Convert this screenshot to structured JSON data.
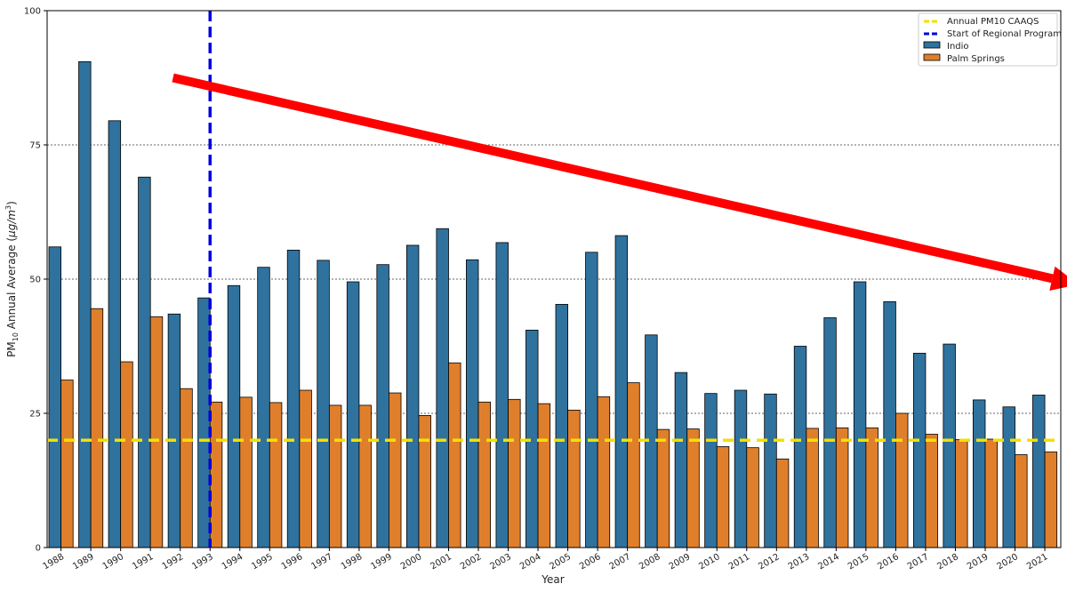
{
  "chart_data": {
    "type": "bar",
    "xlabel": "Year",
    "ylabel_main": "PM",
    "ylabel_sub": "10",
    "ylabel_rest": " Annual Average (",
    "ylabel_unit": "μg/m",
    "ylabel_sup": "3",
    "ylabel_close": ")",
    "ylim": [
      0,
      100
    ],
    "yticks": [
      "0",
      "25",
      "50",
      "75",
      "100"
    ],
    "grid": "horizontal dotted",
    "legend_position": "top-right",
    "categories": [
      "1988",
      "1989",
      "1990",
      "1991",
      "1992",
      "1993",
      "1994",
      "1995",
      "1996",
      "1997",
      "1998",
      "1999",
      "2000",
      "2001",
      "2002",
      "2003",
      "2004",
      "2005",
      "2006",
      "2007",
      "2008",
      "2009",
      "2010",
      "2011",
      "2012",
      "2013",
      "2014",
      "2015",
      "2016",
      "2017",
      "2018",
      "2019",
      "2020",
      "2021"
    ],
    "series": [
      {
        "name": "Indio",
        "color": "#30729e",
        "values": [
          56,
          90.5,
          79.5,
          69,
          43.5,
          46.5,
          48.8,
          52.2,
          55.4,
          53.5,
          49.5,
          52.7,
          56.3,
          59.4,
          53.6,
          56.8,
          40.5,
          45.3,
          55,
          58.1,
          39.6,
          32.6,
          28.7,
          29.3,
          28.6,
          37.5,
          42.8,
          49.5,
          45.8,
          36.2,
          37.9,
          27.5,
          26.2,
          28.4
        ]
      },
      {
        "name": "Palm Springs",
        "color": "#e07f2b",
        "values": [
          31.2,
          44.5,
          34.6,
          43,
          29.6,
          27.1,
          28,
          27,
          29.3,
          26.5,
          26.5,
          28.8,
          24.6,
          34.4,
          27.1,
          27.6,
          26.8,
          25.6,
          28.1,
          30.7,
          22,
          22.1,
          18.8,
          18.6,
          16.5,
          22.2,
          22.3,
          22.3,
          25,
          21.1,
          20.1,
          20.2,
          17.3,
          17.8
        ]
      }
    ],
    "reference_lines": [
      {
        "name": "Annual PM10 CAAQS",
        "orientation": "horizontal",
        "value": 20,
        "color": "#f2e000",
        "style": "dashed"
      },
      {
        "name": "Start of Regional Program",
        "orientation": "vertical",
        "at_year": "1993",
        "color": "#0000dd",
        "style": "dashed"
      }
    ],
    "trend_arrow": {
      "from": {
        "year": "1992",
        "y": 87.5
      },
      "to": {
        "year": "2021",
        "y": 49
      },
      "color": "#ff0000"
    },
    "legend": [
      "Annual PM10 CAAQS",
      "Start of Regional Program",
      "Indio",
      "Palm Springs"
    ]
  }
}
